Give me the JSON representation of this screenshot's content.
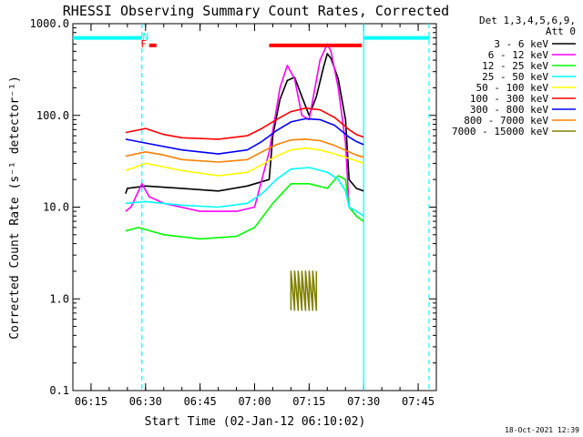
{
  "chart_data": {
    "type": "line",
    "title": "RHESSI Observing Summary Count Rates, Corrected",
    "xlabel": "Start Time (02-Jan-12 06:10:02)",
    "ylabel": "Corrected Count Rate (s⁻¹ detector⁻¹)",
    "y_scale": "log",
    "ylim": [
      0.1,
      1000
    ],
    "xlim_minutes": [
      0,
      100
    ],
    "x_tick_labels": [
      "06:15",
      "06:30",
      "06:45",
      "07:00",
      "07:15",
      "07:30",
      "07:45"
    ],
    "x_tick_minutes": [
      5,
      20,
      35,
      50,
      65,
      80,
      95
    ],
    "y_tick_labels": [
      "0.1",
      "1.0",
      "10.0",
      "100.0",
      "1000.0"
    ],
    "y_tick_values": [
      0.1,
      1,
      10,
      100,
      1000
    ],
    "grid": false,
    "legend_position": "right",
    "legend_header": [
      "Det 1,3,4,5,6,9,",
      "Att 0"
    ],
    "series": [
      {
        "name": "3 - 6 keV",
        "color": "#000000",
        "points": [
          [
            14.5,
            14
          ],
          [
            15,
            16
          ],
          [
            20,
            17
          ],
          [
            30,
            16
          ],
          [
            40,
            15
          ],
          [
            48,
            17
          ],
          [
            54,
            20
          ],
          [
            55,
            60
          ],
          [
            57,
            150
          ],
          [
            59,
            240
          ],
          [
            61,
            260
          ],
          [
            63,
            160
          ],
          [
            65,
            100
          ],
          [
            67,
            160
          ],
          [
            69,
            340
          ],
          [
            70,
            470
          ],
          [
            71,
            420
          ],
          [
            73,
            250
          ],
          [
            75,
            90
          ],
          [
            76,
            20
          ],
          [
            78,
            16
          ],
          [
            80,
            15
          ]
        ]
      },
      {
        "name": "6 - 12 keV",
        "color": "#ff00ff",
        "points": [
          [
            14.5,
            9
          ],
          [
            16,
            10
          ],
          [
            19,
            18
          ],
          [
            21,
            13
          ],
          [
            25,
            11
          ],
          [
            35,
            9
          ],
          [
            45,
            9
          ],
          [
            50,
            10
          ],
          [
            54,
            40
          ],
          [
            57,
            200
          ],
          [
            59,
            350
          ],
          [
            61,
            250
          ],
          [
            63,
            100
          ],
          [
            65,
            90
          ],
          [
            68,
            400
          ],
          [
            70,
            600
          ],
          [
            71,
            500
          ],
          [
            73,
            200
          ],
          [
            75,
            50
          ],
          [
            76,
            10
          ],
          [
            78,
            8
          ],
          [
            80,
            7
          ]
        ]
      },
      {
        "name": "12 - 25 keV",
        "color": "#00ff00",
        "points": [
          [
            14.5,
            5.5
          ],
          [
            18,
            6
          ],
          [
            25,
            5
          ],
          [
            35,
            4.5
          ],
          [
            45,
            4.8
          ],
          [
            50,
            6
          ],
          [
            55,
            11
          ],
          [
            60,
            18
          ],
          [
            65,
            18
          ],
          [
            70,
            16
          ],
          [
            73,
            22
          ],
          [
            75,
            20
          ],
          [
            76,
            10
          ],
          [
            78,
            8
          ],
          [
            80,
            7
          ]
        ]
      },
      {
        "name": "25 - 50 keV",
        "color": "#00ffff",
        "points": [
          [
            14.5,
            11
          ],
          [
            20,
            11.5
          ],
          [
            30,
            10.5
          ],
          [
            40,
            10
          ],
          [
            48,
            11
          ],
          [
            52,
            14
          ],
          [
            56,
            20
          ],
          [
            60,
            26
          ],
          [
            65,
            27
          ],
          [
            70,
            24
          ],
          [
            73,
            20
          ],
          [
            75,
            15
          ],
          [
            76,
            10
          ],
          [
            78,
            9
          ],
          [
            80,
            8
          ]
        ]
      },
      {
        "name": "50 - 100 keV",
        "color": "#ffff00",
        "points": [
          [
            14.5,
            25
          ],
          [
            20,
            30
          ],
          [
            30,
            25
          ],
          [
            40,
            22
          ],
          [
            48,
            24
          ],
          [
            52,
            29
          ],
          [
            56,
            36
          ],
          [
            60,
            42
          ],
          [
            64,
            44
          ],
          [
            68,
            42
          ],
          [
            72,
            38
          ],
          [
            76,
            34
          ],
          [
            78,
            32
          ],
          [
            80,
            30
          ]
        ]
      },
      {
        "name": "100 - 300 keV",
        "color": "#ff0000",
        "points": [
          [
            14.5,
            65
          ],
          [
            20,
            72
          ],
          [
            25,
            62
          ],
          [
            30,
            57
          ],
          [
            40,
            55
          ],
          [
            48,
            60
          ],
          [
            52,
            72
          ],
          [
            56,
            90
          ],
          [
            60,
            110
          ],
          [
            64,
            120
          ],
          [
            68,
            115
          ],
          [
            72,
            95
          ],
          [
            76,
            70
          ],
          [
            78,
            62
          ],
          [
            80,
            58
          ]
        ]
      },
      {
        "name": "300 - 800 keV",
        "color": "#0000ff",
        "points": [
          [
            14.5,
            55
          ],
          [
            20,
            50
          ],
          [
            30,
            42
          ],
          [
            40,
            38
          ],
          [
            48,
            42
          ],
          [
            52,
            52
          ],
          [
            56,
            68
          ],
          [
            60,
            85
          ],
          [
            64,
            92
          ],
          [
            68,
            90
          ],
          [
            72,
            78
          ],
          [
            76,
            58
          ],
          [
            78,
            52
          ],
          [
            80,
            48
          ]
        ]
      },
      {
        "name": "800 - 7000 keV",
        "color": "#ff8000",
        "points": [
          [
            14.5,
            36
          ],
          [
            20,
            40
          ],
          [
            25,
            37
          ],
          [
            30,
            33
          ],
          [
            40,
            31
          ],
          [
            48,
            33
          ],
          [
            52,
            40
          ],
          [
            56,
            48
          ],
          [
            60,
            54
          ],
          [
            64,
            55
          ],
          [
            68,
            53
          ],
          [
            72,
            47
          ],
          [
            76,
            40
          ],
          [
            78,
            37
          ],
          [
            80,
            35
          ]
        ]
      },
      {
        "name": "7000 - 15000 keV",
        "color": "#808000",
        "points": [
          [
            60,
            0.75
          ],
          [
            60,
            2
          ],
          [
            61,
            0.75
          ],
          [
            61,
            2
          ],
          [
            62,
            0.75
          ],
          [
            62,
            2
          ],
          [
            63,
            0.75
          ],
          [
            63,
            2
          ],
          [
            64,
            0.75
          ],
          [
            64,
            2
          ],
          [
            65,
            0.75
          ],
          [
            65,
            2
          ],
          [
            66,
            0.75
          ],
          [
            66,
            2
          ],
          [
            67,
            0.75
          ],
          [
            67,
            2
          ]
        ]
      }
    ],
    "annotations": [
      {
        "label": "N",
        "color": "#00ffff",
        "x_minute": 20
      },
      {
        "label": "F",
        "color": "#ff0000",
        "x_minute": 19.5
      }
    ],
    "bars": [
      {
        "color": "#00ffff",
        "x_minutes": [
          0,
          19
        ],
        "y": 700
      },
      {
        "color": "#00ffff",
        "x_minutes": [
          80,
          98
        ],
        "y": 700
      },
      {
        "color": "#ff0000",
        "x_minutes": [
          21,
          23
        ],
        "y": 580
      },
      {
        "color": "#ff0000",
        "x_minutes": [
          54,
          79.5
        ],
        "y": 580
      }
    ],
    "vertical_lines": [
      {
        "color": "#00ffff",
        "style": "dashed",
        "x_minute": 19
      },
      {
        "color": "#00ffff",
        "style": "solid",
        "x_minute": 80
      },
      {
        "color": "#00ffff",
        "style": "dashed",
        "x_minute": 98
      }
    ]
  },
  "footer": {
    "timestamp": "18-Oct-2021 12:39"
  }
}
